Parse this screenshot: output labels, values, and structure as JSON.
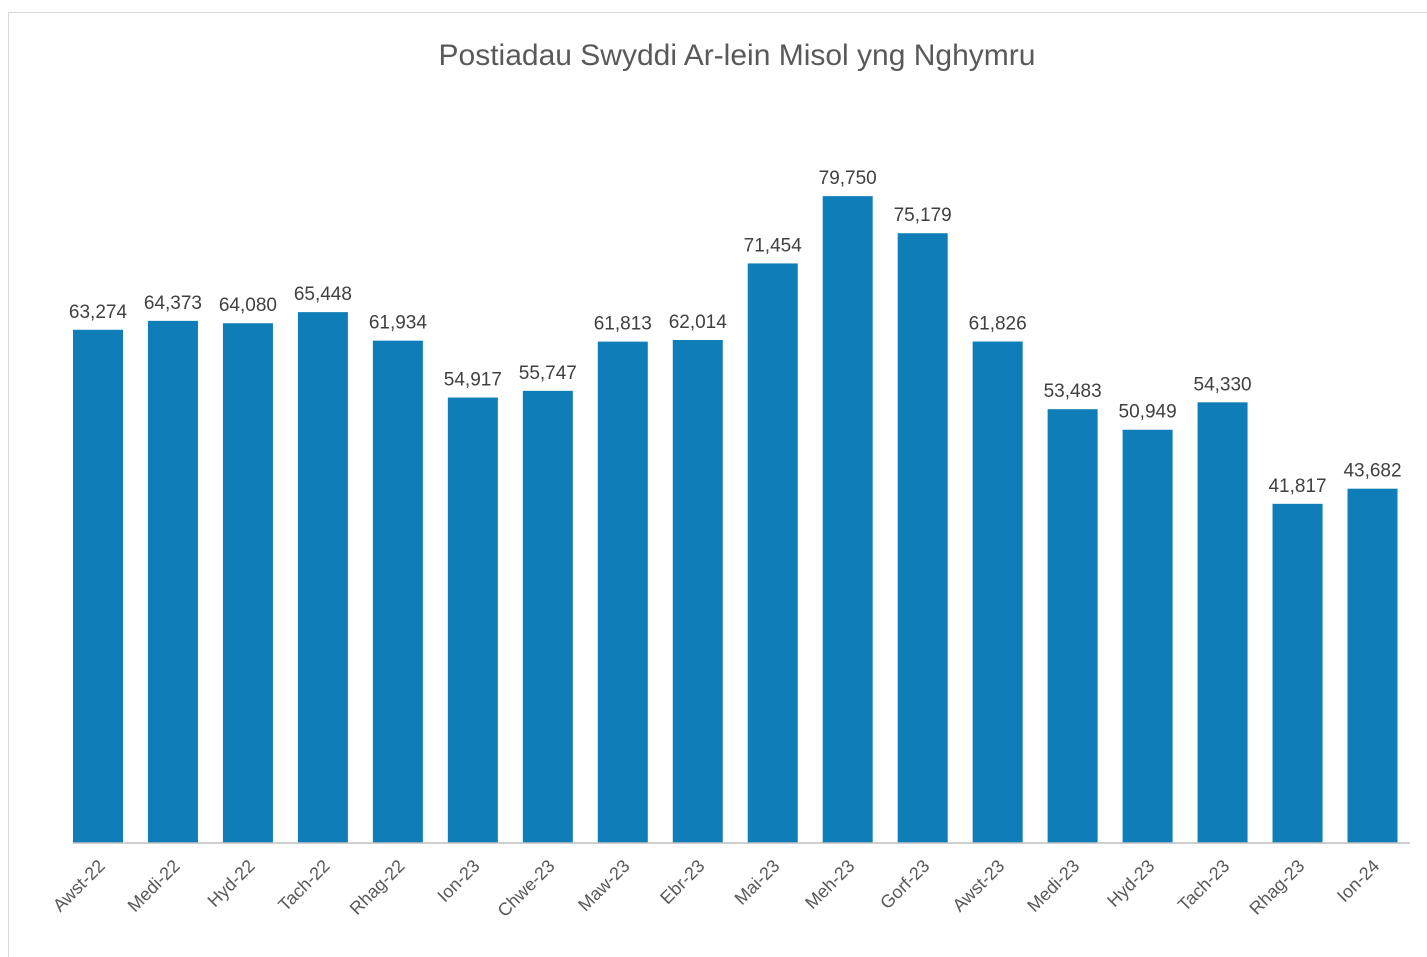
{
  "chart_data": {
    "type": "bar",
    "title": "Postiadau Swyddi Ar-lein Misol yng Nghymru",
    "categories": [
      "Awst-22",
      "Medi-22",
      "Hyd-22",
      "Tach-22",
      "Rhag-22",
      "Ion-23",
      "Chwe-23",
      "Maw-23",
      "Ebr-23",
      "Mai-23",
      "Meh-23",
      "Gorf-23",
      "Awst-23",
      "Medi-23",
      "Hyd-23",
      "Tach-23",
      "Rhag-23",
      "Ion-24"
    ],
    "values": [
      63274,
      64373,
      64080,
      65448,
      61934,
      54917,
      55747,
      61813,
      62014,
      71454,
      79750,
      75179,
      61826,
      53483,
      50949,
      54330,
      41817,
      43682
    ],
    "value_labels": [
      "63,274",
      "64,373",
      "64,080",
      "65,448",
      "61,934",
      "54,917",
      "55,747",
      "61,813",
      "62,014",
      "71,454",
      "79,750",
      "75,179",
      "61,826",
      "53,483",
      "50,949",
      "54,330",
      "41,817",
      "43,682"
    ],
    "color": "#0f7eb8",
    "ylim": [
      0,
      90000
    ]
  }
}
